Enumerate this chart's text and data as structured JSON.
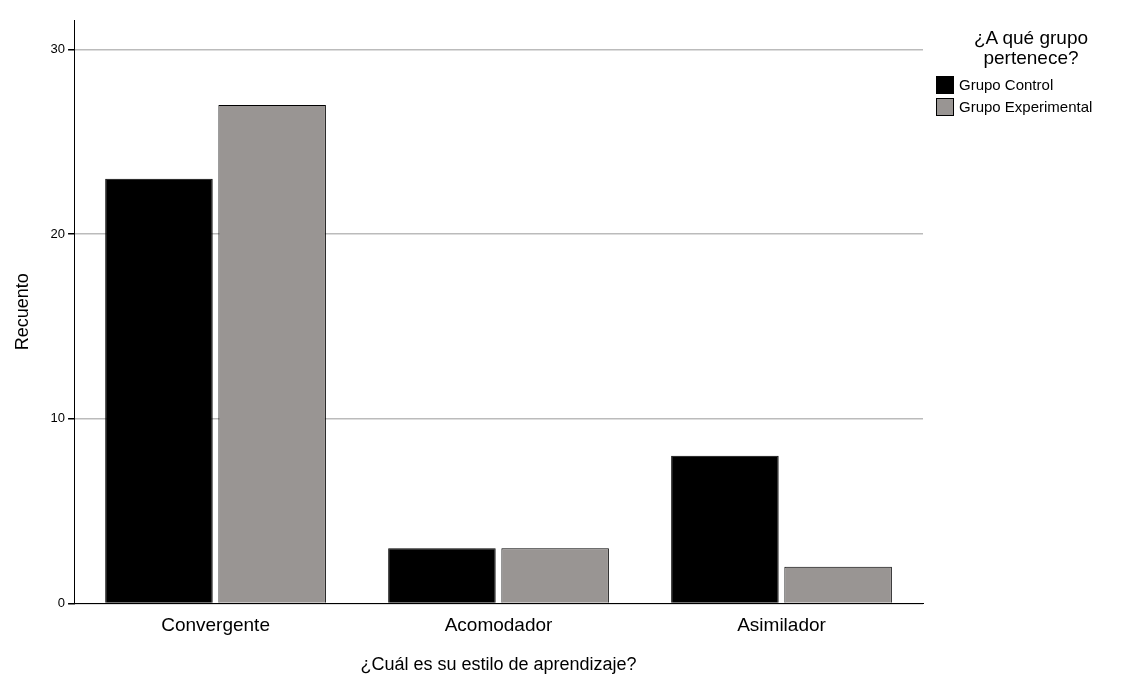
{
  "chart_data": {
    "type": "bar",
    "xlabel": "¿Cuál es su estilo de aprendizaje?",
    "ylabel": "Recuento",
    "legend_title": "¿A qué grupo pertenece?",
    "categories": [
      "Convergente",
      "Acomodador",
      "Asimilador"
    ],
    "series": [
      {
        "name": "Grupo Control",
        "color": "#000000",
        "values": [
          23,
          3,
          8
        ]
      },
      {
        "name": "Grupo Experimental",
        "color": "#999593",
        "values": [
          27,
          3,
          2
        ]
      }
    ],
    "ylim": [
      0,
      31.6
    ],
    "yticks": [
      0,
      10,
      20,
      30
    ],
    "grid": "y",
    "legend": "top right"
  }
}
